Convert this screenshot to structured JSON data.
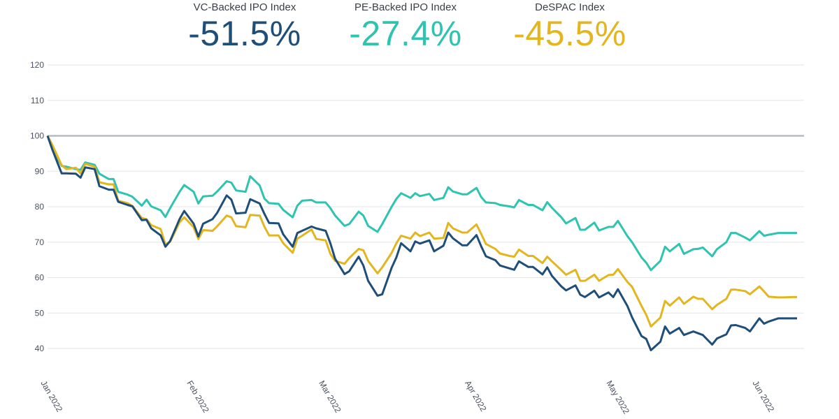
{
  "header": {
    "kpis": [
      {
        "label": "VC-Backed IPO Index",
        "value": "-51.5%",
        "color": "#1f4e79"
      },
      {
        "label": "PE-Backed IPO Index",
        "value": "-27.4%",
        "color": "#2ec4b0"
      },
      {
        "label": "DeSPAC Index",
        "value": "-45.5%",
        "color": "#e3b620"
      }
    ]
  },
  "chart_data": {
    "type": "line",
    "title": "",
    "xlabel": "",
    "ylabel": "",
    "ylim": [
      40,
      120
    ],
    "yticks": [
      40,
      50,
      60,
      70,
      80,
      90,
      100,
      110,
      120
    ],
    "xlim": [
      "2022-01-01",
      "2022-06-09"
    ],
    "xticks": [
      {
        "date": "2022-01-01",
        "label": "Jan 2022"
      },
      {
        "date": "2022-02-01",
        "label": "Feb 2022"
      },
      {
        "date": "2022-03-01",
        "label": "Mar 2022"
      },
      {
        "date": "2022-04-01",
        "label": "Apr 2022"
      },
      {
        "date": "2022-05-01",
        "label": "May 2022"
      },
      {
        "date": "2022-06-01",
        "label": "Jun 2022"
      }
    ],
    "reference_line": 100,
    "grid": true,
    "x": [
      "2022-01-01",
      "2022-01-02",
      "2022-01-04",
      "2022-01-05",
      "2022-01-07",
      "2022-01-08",
      "2022-01-09",
      "2022-01-11",
      "2022-01-12",
      "2022-01-14",
      "2022-01-15",
      "2022-01-16",
      "2022-01-18",
      "2022-01-19",
      "2022-01-21",
      "2022-01-22",
      "2022-01-23",
      "2022-01-25",
      "2022-01-26",
      "2022-01-27",
      "2022-01-29",
      "2022-01-30",
      "2022-02-01",
      "2022-02-02",
      "2022-02-03",
      "2022-02-05",
      "2022-02-06",
      "2022-02-08",
      "2022-02-09",
      "2022-02-10",
      "2022-02-12",
      "2022-02-13",
      "2022-02-15",
      "2022-02-16",
      "2022-02-17",
      "2022-02-19",
      "2022-02-20",
      "2022-02-22",
      "2022-02-23",
      "2022-02-24",
      "2022-02-26",
      "2022-02-27",
      "2022-03-01",
      "2022-03-02",
      "2022-03-03",
      "2022-03-05",
      "2022-03-06",
      "2022-03-08",
      "2022-03-09",
      "2022-03-10",
      "2022-03-12",
      "2022-03-13",
      "2022-03-15",
      "2022-03-16",
      "2022-03-17",
      "2022-03-19",
      "2022-03-20",
      "2022-03-21",
      "2022-03-23",
      "2022-03-24",
      "2022-03-26",
      "2022-03-27",
      "2022-03-28",
      "2022-03-30",
      "2022-03-31",
      "2022-04-02",
      "2022-04-03",
      "2022-04-04",
      "2022-04-06",
      "2022-04-07",
      "2022-04-09",
      "2022-04-10",
      "2022-04-11",
      "2022-04-13",
      "2022-04-14",
      "2022-04-16",
      "2022-04-17",
      "2022-04-18",
      "2022-04-20",
      "2022-04-21",
      "2022-04-23",
      "2022-04-24",
      "2022-04-25",
      "2022-04-27",
      "2022-04-28",
      "2022-04-30",
      "2022-05-01",
      "2022-05-02",
      "2022-05-04",
      "2022-05-05",
      "2022-05-07",
      "2022-05-08",
      "2022-05-09",
      "2022-05-11",
      "2022-05-12",
      "2022-05-13",
      "2022-05-15",
      "2022-05-16",
      "2022-05-18",
      "2022-05-19",
      "2022-05-20",
      "2022-05-22",
      "2022-05-23",
      "2022-05-25",
      "2022-05-26",
      "2022-05-27",
      "2022-05-29",
      "2022-05-30",
      "2022-06-01",
      "2022-06-02",
      "2022-06-03",
      "2022-06-05",
      "2022-06-06",
      "2022-06-08",
      "2022-06-09"
    ],
    "series": [
      {
        "name": "PE-Backed IPO Index",
        "color": "#2ec4b0",
        "values": [
          100,
          96.5,
          91.5,
          91.3,
          90.6,
          90.4,
          92.5,
          91.8,
          89.3,
          87.8,
          87.8,
          84.2,
          83.4,
          82.8,
          80.3,
          82,
          80.1,
          79,
          77.1,
          79.6,
          84.2,
          86.1,
          84.2,
          80.9,
          82.9,
          83.1,
          84.3,
          87.2,
          86.8,
          84.6,
          84.2,
          88.6,
          86,
          82.3,
          81,
          80.8,
          79.1,
          77,
          80.3,
          81.7,
          81.9,
          81.2,
          81.2,
          79.6,
          77.5,
          74.6,
          75.1,
          78.6,
          77.5,
          74.6,
          72.9,
          75.1,
          80,
          82.2,
          83.8,
          82.5,
          83.8,
          83,
          83.6,
          81.9,
          82.5,
          85.5,
          84.3,
          83.5,
          83.5,
          85.3,
          82.7,
          81.2,
          81,
          80.5,
          80.1,
          79.8,
          81.9,
          80.5,
          80.5,
          79,
          81.3,
          79.7,
          77,
          75.3,
          76.8,
          73.5,
          73.5,
          75.5,
          73.3,
          74.3,
          74.3,
          76,
          71.7,
          70,
          65.7,
          64.2,
          62.1,
          64.7,
          68.7,
          67.4,
          69.5,
          66.7,
          68,
          68.1,
          68.5,
          66,
          68,
          70,
          72.6,
          72.6,
          71.3,
          70.5,
          73.1,
          71.8,
          72.1,
          72.6,
          72.6,
          72.6,
          72.6
        ]
      },
      {
        "name": "DeSPAC Index",
        "color": "#e3b620",
        "values": [
          100,
          97.5,
          91.7,
          90.6,
          91,
          89.4,
          92.1,
          91.3,
          86.9,
          86.3,
          86.3,
          81.7,
          81,
          80.2,
          76.8,
          76.5,
          74.8,
          73.7,
          69.3,
          70.1,
          75.6,
          77,
          74.2,
          70.9,
          73.4,
          73.2,
          74.5,
          77.5,
          77,
          74.5,
          74.2,
          77.7,
          77.5,
          74.4,
          71.9,
          71.9,
          69.7,
          67,
          71,
          71.8,
          73.6,
          70.9,
          70.5,
          66.7,
          64.7,
          63.9,
          65.5,
          68.1,
          67.7,
          64.7,
          61.2,
          62.9,
          67,
          69.7,
          71.8,
          71,
          72.7,
          71.7,
          72.7,
          71,
          71.2,
          75.4,
          73.9,
          72.7,
          72.7,
          75,
          72.3,
          69.5,
          68.1,
          66.8,
          66.1,
          65.9,
          67.9,
          66.1,
          66.1,
          64.1,
          65.9,
          64.6,
          62.1,
          60.8,
          62.2,
          59.1,
          59.1,
          60.8,
          59.1,
          60.7,
          60.8,
          62.4,
          58.8,
          57.4,
          52,
          49.5,
          46.2,
          48.7,
          53.4,
          52.1,
          54.4,
          52.6,
          54.6,
          54,
          54,
          51.1,
          52.3,
          54,
          56.6,
          56.6,
          56.2,
          55.3,
          57.5,
          56.1,
          54.6,
          54.4,
          54.4,
          54.5,
          54.5
        ]
      },
      {
        "name": "VC-Backed IPO Index",
        "color": "#1f4e79",
        "values": [
          100,
          96.2,
          89.4,
          89.4,
          89.3,
          88.2,
          91.1,
          90.6,
          85.8,
          84.8,
          84.8,
          81.4,
          80.5,
          80.1,
          76.2,
          76.3,
          73.9,
          71.9,
          68.7,
          70.3,
          76.5,
          78.8,
          75.2,
          71.6,
          75.2,
          76.5,
          78.3,
          83.2,
          82,
          78.1,
          78.3,
          82.1,
          80.9,
          78,
          75.4,
          75.3,
          72.2,
          68.7,
          72.6,
          73.2,
          74.4,
          73.9,
          73.2,
          69.7,
          65.3,
          61,
          61.8,
          65.9,
          63.4,
          59.1,
          54.9,
          55.3,
          62.8,
          65.7,
          69.7,
          67.4,
          70.2,
          69.6,
          70.5,
          67.4,
          69,
          72.7,
          71.1,
          69.1,
          69.1,
          72,
          68.8,
          66,
          64.9,
          63.4,
          62.6,
          62.2,
          64.6,
          63,
          63,
          60.9,
          62.9,
          60.5,
          57.5,
          56.4,
          57.8,
          55.2,
          54.5,
          56.3,
          54.4,
          55.8,
          54.5,
          56.7,
          52,
          48.8,
          43.5,
          42.7,
          39.5,
          41.9,
          46.2,
          44.2,
          45.8,
          43.8,
          44.8,
          44.3,
          43.8,
          41.1,
          42.8,
          44,
          46.5,
          46.6,
          45.8,
          44.8,
          48.5,
          47,
          47.6,
          48.5,
          48.5,
          48.5,
          48.5
        ]
      }
    ]
  }
}
